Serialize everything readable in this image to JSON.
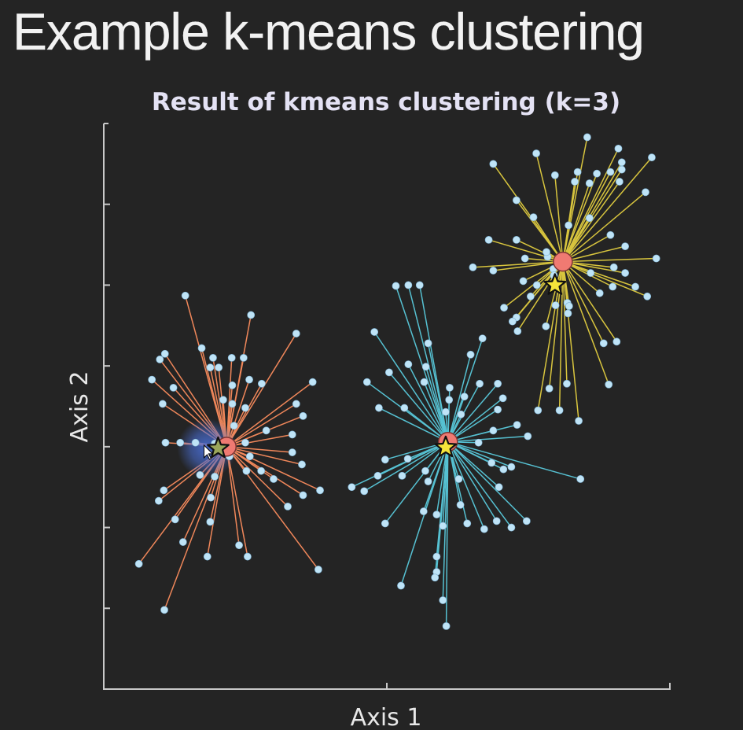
{
  "page": {
    "title": "Example k-means clustering"
  },
  "chart_data": {
    "type": "scatter",
    "title": "Result of kmeans clustering (k=3)",
    "xlabel": "Axis 1",
    "ylabel": "Axis 2",
    "xlim": [
      0,
      10
    ],
    "ylim": [
      0,
      7
    ],
    "x_ticks": [
      5
    ],
    "y_ticks": [
      1,
      2,
      3,
      4,
      5,
      6
    ],
    "show_tick_labels": false,
    "grid": false,
    "colors": {
      "point": "#bfe4f7",
      "centroid": "#f07a72",
      "star": "#f6e43a",
      "cursor_halo": "#4a6fd6"
    },
    "clusters": [
      {
        "line_color": "#f0875a",
        "centroid": [
          2.17,
          3.0
        ],
        "star": [
          2.02,
          2.98
        ],
        "points": [
          [
            1.44,
            4.87
          ],
          [
            2.6,
            4.63
          ],
          [
            1.08,
            4.15
          ],
          [
            1.73,
            4.22
          ],
          [
            1.93,
            4.1
          ],
          [
            1.88,
            3.98
          ],
          [
            0.99,
            4.08
          ],
          [
            2.03,
            3.98
          ],
          [
            2.26,
            4.1
          ],
          [
            2.47,
            4.1
          ],
          [
            0.85,
            3.83
          ],
          [
            1.23,
            3.73
          ],
          [
            2.27,
            3.76
          ],
          [
            2.57,
            3.83
          ],
          [
            2.11,
            3.58
          ],
          [
            1.04,
            3.53
          ],
          [
            2.27,
            3.53
          ],
          [
            2.5,
            3.48
          ],
          [
            2.79,
            3.78
          ],
          [
            3.4,
            4.4
          ],
          [
            3.69,
            3.8
          ],
          [
            3.4,
            3.53
          ],
          [
            3.52,
            3.38
          ],
          [
            2.3,
            3.26
          ],
          [
            2.87,
            3.2
          ],
          [
            3.33,
            3.15
          ],
          [
            1.96,
            3.04
          ],
          [
            1.09,
            3.05
          ],
          [
            1.35,
            3.05
          ],
          [
            1.62,
            3.05
          ],
          [
            2.5,
            3.05
          ],
          [
            3.33,
            2.93
          ],
          [
            2.22,
            2.88
          ],
          [
            2.58,
            2.88
          ],
          [
            3.5,
            2.78
          ],
          [
            2.52,
            2.7
          ],
          [
            2.78,
            2.7
          ],
          [
            1.7,
            2.65
          ],
          [
            1.06,
            2.46
          ],
          [
            1.96,
            2.63
          ],
          [
            3.0,
            2.6
          ],
          [
            3.52,
            2.4
          ],
          [
            3.82,
            2.46
          ],
          [
            0.97,
            2.33
          ],
          [
            1.89,
            2.37
          ],
          [
            3.25,
            2.26
          ],
          [
            1.26,
            2.1
          ],
          [
            1.88,
            2.07
          ],
          [
            1.4,
            1.82
          ],
          [
            2.39,
            1.78
          ],
          [
            0.62,
            1.55
          ],
          [
            1.83,
            1.64
          ],
          [
            2.54,
            1.64
          ],
          [
            3.79,
            1.48
          ],
          [
            1.07,
            0.98
          ]
        ]
      },
      {
        "line_color": "#56c1d2",
        "centroid": [
          6.08,
          3.06
        ],
        "star": [
          6.04,
          2.99
        ],
        "points": [
          [
            5.16,
            4.99
          ],
          [
            5.38,
            5.0
          ],
          [
            5.58,
            5.0
          ],
          [
            4.78,
            4.42
          ],
          [
            6.69,
            4.34
          ],
          [
            5.73,
            4.28
          ],
          [
            6.48,
            4.14
          ],
          [
            5.38,
            4.02
          ],
          [
            5.69,
            3.99
          ],
          [
            4.65,
            3.8
          ],
          [
            5.04,
            3.92
          ],
          [
            5.66,
            3.8
          ],
          [
            6.11,
            3.73
          ],
          [
            6.1,
            3.58
          ],
          [
            6.64,
            3.78
          ],
          [
            6.96,
            3.78
          ],
          [
            7.05,
            3.6
          ],
          [
            6.96,
            3.46
          ],
          [
            6.37,
            3.62
          ],
          [
            6.88,
            3.2
          ],
          [
            4.86,
            3.48
          ],
          [
            5.31,
            3.48
          ],
          [
            6.04,
            3.43
          ],
          [
            6.31,
            3.4
          ],
          [
            7.3,
            3.27
          ],
          [
            7.49,
            3.13
          ],
          [
            6.62,
            3.05
          ],
          [
            4.97,
            2.84
          ],
          [
            5.37,
            2.85
          ],
          [
            5.68,
            2.7
          ],
          [
            6.85,
            2.8
          ],
          [
            4.38,
            2.5
          ],
          [
            4.6,
            2.45
          ],
          [
            4.84,
            2.64
          ],
          [
            5.27,
            2.64
          ],
          [
            5.73,
            2.57
          ],
          [
            6.27,
            2.6
          ],
          [
            7.06,
            2.72
          ],
          [
            7.2,
            2.75
          ],
          [
            6.98,
            2.5
          ],
          [
            8.42,
            2.6
          ],
          [
            6.3,
            2.28
          ],
          [
            6.42,
            2.05
          ],
          [
            6.94,
            2.08
          ],
          [
            7.2,
            2.0
          ],
          [
            7.47,
            2.08
          ],
          [
            4.97,
            2.05
          ],
          [
            5.65,
            2.2
          ],
          [
            5.88,
            2.16
          ],
          [
            5.99,
            2.02
          ],
          [
            6.72,
            1.98
          ],
          [
            5.88,
            1.64
          ],
          [
            5.88,
            1.45
          ],
          [
            5.25,
            1.28
          ],
          [
            5.85,
            1.38
          ],
          [
            5.99,
            1.1
          ],
          [
            6.05,
            0.78
          ]
        ]
      },
      {
        "line_color": "#d8c53e",
        "centroid": [
          8.11,
          5.29
        ],
        "star": [
          7.97,
          5.0
        ],
        "points": [
          [
            8.54,
            6.83
          ],
          [
            9.09,
            6.69
          ],
          [
            9.68,
            6.58
          ],
          [
            7.64,
            6.63
          ],
          [
            6.88,
            6.5
          ],
          [
            8.58,
            6.26
          ],
          [
            8.95,
            6.4
          ],
          [
            9.15,
            6.43
          ],
          [
            8.37,
            6.4
          ],
          [
            7.97,
            6.36
          ],
          [
            8.32,
            6.28
          ],
          [
            8.71,
            6.38
          ],
          [
            9.11,
            6.28
          ],
          [
            9.15,
            6.52
          ],
          [
            9.57,
            6.15
          ],
          [
            7.29,
            6.05
          ],
          [
            7.59,
            5.84
          ],
          [
            8.58,
            5.83
          ],
          [
            8.21,
            5.74
          ],
          [
            7.29,
            5.56
          ],
          [
            6.8,
            5.56
          ],
          [
            8.95,
            5.62
          ],
          [
            9.21,
            5.48
          ],
          [
            7.84,
            5.35
          ],
          [
            7.44,
            5.33
          ],
          [
            7.82,
            5.41
          ],
          [
            9.76,
            5.33
          ],
          [
            6.52,
            5.22
          ],
          [
            6.88,
            5.18
          ],
          [
            8.6,
            5.15
          ],
          [
            9.01,
            5.22
          ],
          [
            9.21,
            5.15
          ],
          [
            7.41,
            5.05
          ],
          [
            7.65,
            5.0
          ],
          [
            7.94,
            5.2
          ],
          [
            7.95,
            5.12
          ],
          [
            8.99,
            4.98
          ],
          [
            9.39,
            4.98
          ],
          [
            8.76,
            4.9
          ],
          [
            7.54,
            4.86
          ],
          [
            8.19,
            4.78
          ],
          [
            8.22,
            4.74
          ],
          [
            9.6,
            4.86
          ],
          [
            7.07,
            4.72
          ],
          [
            7.29,
            4.6
          ],
          [
            7.98,
            4.75
          ],
          [
            7.22,
            4.55
          ],
          [
            8.2,
            4.65
          ],
          [
            7.31,
            4.43
          ],
          [
            7.81,
            4.49
          ],
          [
            8.83,
            4.28
          ],
          [
            9.06,
            4.3
          ],
          [
            8.92,
            3.77
          ],
          [
            7.87,
            3.72
          ],
          [
            8.18,
            3.78
          ],
          [
            7.67,
            3.45
          ],
          [
            8.05,
            3.45
          ],
          [
            8.39,
            3.32
          ]
        ]
      }
    ]
  }
}
